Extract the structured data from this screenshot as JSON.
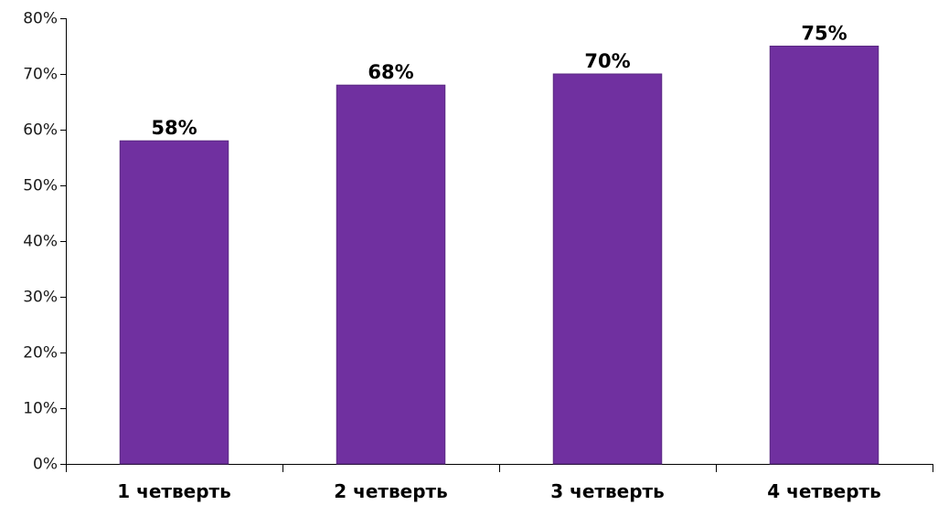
{
  "chart_data": {
    "type": "bar",
    "categories": [
      "1 четверть",
      "2 четверть",
      "3 четверть",
      "4 четверть"
    ],
    "values": [
      58,
      68,
      70,
      75
    ],
    "data_labels": [
      "58%",
      "68%",
      "70%",
      "75%"
    ],
    "ylim": [
      0,
      80
    ],
    "y_ticks": [
      0,
      10,
      20,
      30,
      40,
      50,
      60,
      70,
      80
    ],
    "y_tick_labels": [
      "0%",
      "10%",
      "20%",
      "30%",
      "40%",
      "50%",
      "60%",
      "70%",
      "80%"
    ],
    "grid": false,
    "legend": "none",
    "colors": {
      "bar": "#7030a0",
      "bar_edge": "#5a2a82",
      "axis": "#000000"
    }
  }
}
